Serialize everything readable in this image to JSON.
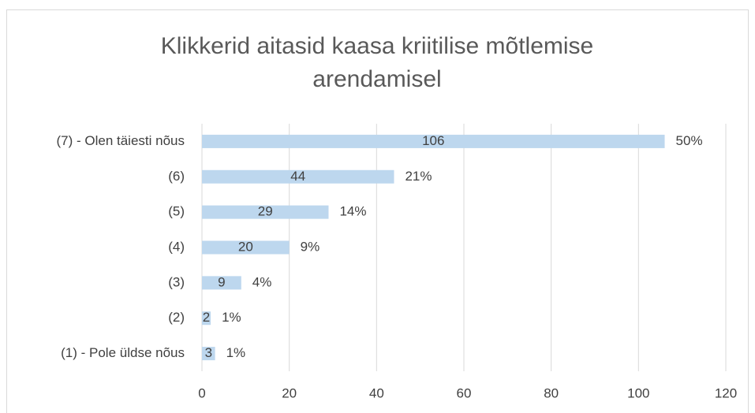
{
  "chart_data": {
    "type": "barh",
    "title": "Klikkerid aitasid kaasa kriitilise mõtlemise arendamisel",
    "categories": [
      "(7) - Olen täiesti nõus",
      "(6)",
      "(5)",
      "(4)",
      "(3)",
      "(2)",
      "(1) - Pole üldse nõus"
    ],
    "values": [
      106,
      44,
      29,
      20,
      9,
      2,
      3
    ],
    "percent_labels": [
      "50%",
      "21%",
      "14%",
      "9%",
      "4%",
      "1%",
      "1%"
    ],
    "color": "#bdd7ee",
    "xlim": [
      0,
      120
    ],
    "xticks": [
      0,
      20,
      40,
      60,
      80,
      100,
      120
    ],
    "grid": true
  }
}
